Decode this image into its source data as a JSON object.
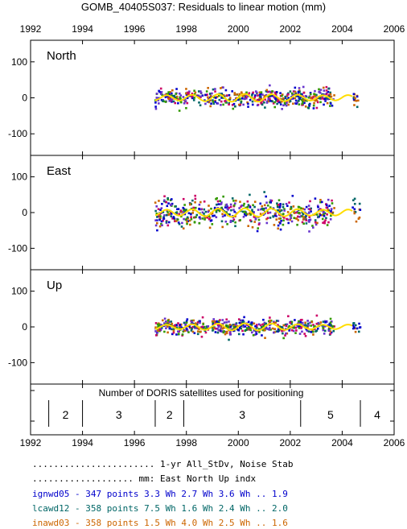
{
  "chart_data": {
    "type": "scatter",
    "title": "GOMB_40405S037: Residuals to linear motion (mm)",
    "x_ticks": [
      "1992",
      "1994",
      "1996",
      "1998",
      "2000",
      "2002",
      "2004",
      "2006"
    ],
    "xlim": [
      1992,
      2006
    ],
    "panels": [
      {
        "label": "North",
        "ylim": [
          -160,
          160
        ],
        "y_ticks": [
          "100",
          "0",
          "-100"
        ],
        "x_start": 1996.8,
        "x_end": 2003.7,
        "spread": 18,
        "wave_amp": 9,
        "tail": [
          2004.4,
          2004.7
        ]
      },
      {
        "label": "East",
        "ylim": [
          -160,
          160
        ],
        "y_ticks": [
          "100",
          "0",
          "-100"
        ],
        "x_start": 1996.8,
        "x_end": 2003.7,
        "spread": 28,
        "wave_amp": 10,
        "tail": [
          2004.4,
          2004.7
        ]
      },
      {
        "label": "Up",
        "ylim": [
          -160,
          160
        ],
        "y_ticks": [
          "100",
          "0",
          "-100"
        ],
        "x_start": 1996.8,
        "x_end": 2003.7,
        "spread": 15,
        "wave_amp": 8,
        "tail": [
          2004.4,
          2004.7
        ]
      }
    ],
    "satellites": {
      "title": "Number of DORIS satellites used for positioning",
      "segments": [
        {
          "start": 1992.7,
          "end": 1994.0,
          "count": "2"
        },
        {
          "start": 1994.0,
          "end": 1996.8,
          "count": "3"
        },
        {
          "start": 1996.8,
          "end": 1997.9,
          "count": "2"
        },
        {
          "start": 1997.9,
          "end": 2002.4,
          "count": "3"
        },
        {
          "start": 2002.4,
          "end": 2004.7,
          "count": "5"
        },
        {
          "start": 2004.7,
          "end": 2006.0,
          "count": "4"
        }
      ]
    },
    "series": [
      {
        "name": "ignwd05",
        "color": "#0000cc",
        "points": "347",
        "east": "3.3",
        "north": "2.7",
        "up": "3.6",
        "stab": "1.9"
      },
      {
        "name": "lcawd12",
        "color": "#006666",
        "points": "358",
        "east": "7.5",
        "north": "1.6",
        "up": "2.4",
        "stab": "2.0"
      },
      {
        "name": "inawd03",
        "color": "#cc6600",
        "points": "358",
        "east": "1.5",
        "north": "4.0",
        "up": "2.5",
        "stab": "1.6"
      }
    ],
    "extra_dot_colors": [
      "#cc0066",
      "#6633cc",
      "#339900"
    ],
    "smooth_color": "#ffdd00",
    "table": {
      "header1": "....................... 1-yr All_StDv, Noise      Stab",
      "header2": "................... mm:   East  North    Up       indx",
      "unit": "Wh"
    }
  }
}
